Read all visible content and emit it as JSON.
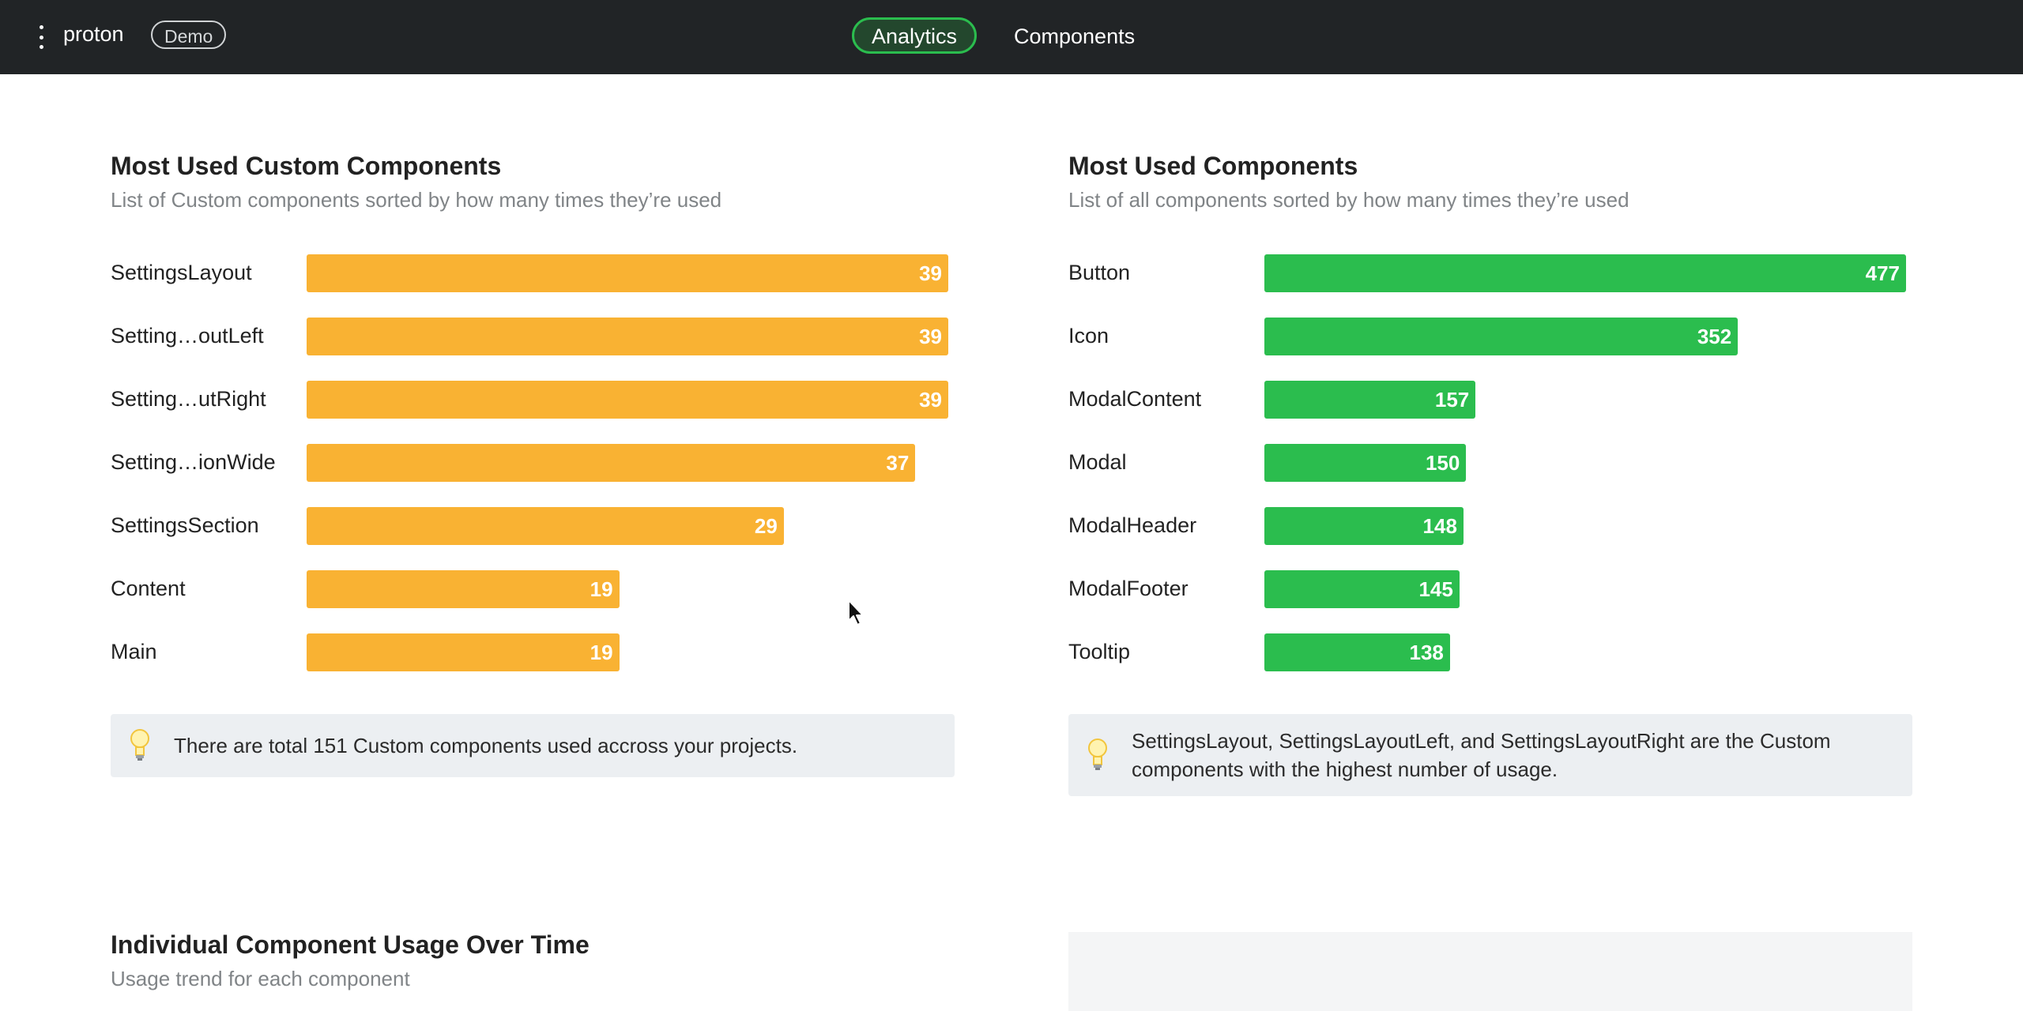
{
  "app": {
    "name": "proton",
    "badge": "Demo"
  },
  "nav": {
    "tabs": [
      {
        "label": "Analytics",
        "active": true
      },
      {
        "label": "Components",
        "active": false
      }
    ]
  },
  "custom_components": {
    "title": "Most Used Custom Components",
    "subtitle": "List of Custom components sorted by how many times they’re used",
    "max": 39,
    "items": [
      {
        "label": "SettingsLayout",
        "value": 39
      },
      {
        "label": "Setting…outLeft",
        "value": 39
      },
      {
        "label": "Setting…utRight",
        "value": 39
      },
      {
        "label": "Setting…ionWide",
        "value": 37
      },
      {
        "label": "SettingsSection",
        "value": 29
      },
      {
        "label": "Content",
        "value": 19
      },
      {
        "label": "Main",
        "value": 19
      }
    ],
    "insight": "There are total 151 Custom components used accross your projects."
  },
  "all_components": {
    "title": "Most Used Components",
    "subtitle": "List of all components sorted by how many times they’re used",
    "max": 477,
    "items": [
      {
        "label": "Button",
        "value": 477
      },
      {
        "label": "Icon",
        "value": 352
      },
      {
        "label": "ModalContent",
        "value": 157
      },
      {
        "label": "Modal",
        "value": 150
      },
      {
        "label": "ModalHeader",
        "value": 148
      },
      {
        "label": "ModalFooter",
        "value": 145
      },
      {
        "label": "Tooltip",
        "value": 138
      }
    ],
    "insight": "SettingsLayout, SettingsLayoutLeft, and SettingsLayoutRight are the Custom components with the highest number of usage."
  },
  "usage_over_time": {
    "title": "Individual Component Usage Over Time",
    "subtitle": "Usage trend for each component"
  },
  "colors": {
    "custom_bar": "#f9b233",
    "component_bar": "#2bbd4e",
    "topbar": "#212426",
    "active_tab_border": "#2bbd4e"
  },
  "icons": {
    "menu": "kebab-menu-icon",
    "insight": "lightbulb-icon"
  }
}
